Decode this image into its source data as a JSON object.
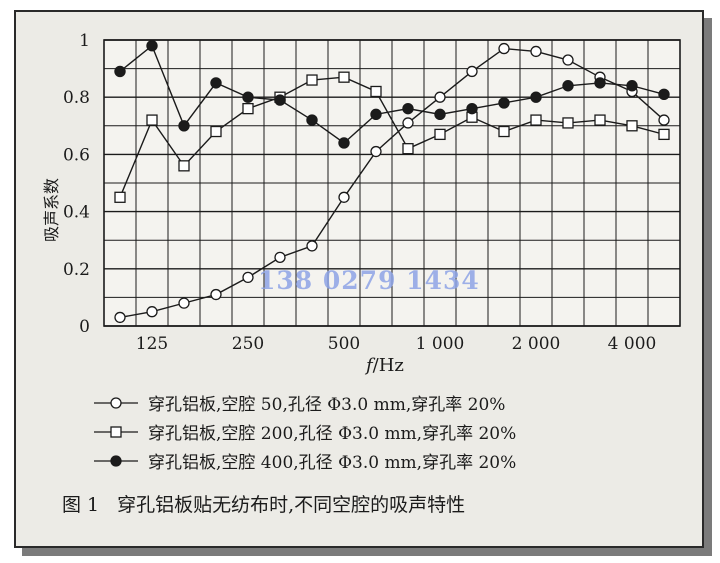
{
  "chart_data": {
    "type": "line",
    "ylabel": "吸声系数",
    "xlabel_italic": "f",
    "xlabel_unit": "/Hz",
    "x_ticks": [
      "125",
      "250",
      "500",
      "1 000",
      "2 000",
      "4 000"
    ],
    "y_ticks": [
      "0",
      "0.2",
      "0.4",
      "0.6",
      "0.8",
      "1"
    ],
    "ylim": [
      0,
      1
    ],
    "x_scale": "log (1/3 octave)",
    "x": [
      100,
      125,
      160,
      200,
      250,
      315,
      400,
      500,
      630,
      800,
      1000,
      1250,
      1600,
      2000,
      2500,
      3150,
      4000,
      5000
    ],
    "grid": true,
    "series": [
      {
        "name": "穿孔铝板，空腔 50，孔径 Φ3.0 mm，穿孔率 20%",
        "marker": "circle-open",
        "values": [
          0.03,
          0.05,
          0.08,
          0.11,
          0.17,
          0.24,
          0.28,
          0.45,
          0.61,
          0.71,
          0.8,
          0.89,
          0.97,
          0.96,
          0.93,
          0.87,
          0.82,
          0.72
        ]
      },
      {
        "name": "穿孔铝板，空腔 200，孔径 Φ3.0 mm，穿孔率 20%",
        "marker": "square-open",
        "values": [
          0.45,
          0.72,
          0.56,
          0.68,
          0.76,
          0.8,
          0.86,
          0.87,
          0.82,
          0.62,
          0.67,
          0.73,
          0.68,
          0.72,
          0.71,
          0.72,
          0.7,
          0.67
        ]
      },
      {
        "name": "穿孔铝板，空腔 400，孔径 Φ3.0 mm，穿孔率 20%",
        "marker": "circle-filled",
        "values": [
          0.89,
          0.98,
          0.7,
          0.85,
          0.8,
          0.79,
          0.72,
          0.64,
          0.74,
          0.76,
          0.74,
          0.76,
          0.78,
          0.8,
          0.84,
          0.85,
          0.84,
          0.81
        ]
      }
    ]
  },
  "legend": [
    "穿孔铝板,空腔 50,孔径 Φ3.0 mm,穿孔率 20%",
    "穿孔铝板,空腔 200,孔径 Φ3.0 mm,穿孔率 20%",
    "穿孔铝板,空腔 400,孔径 Φ3.0 mm,穿孔率 20%"
  ],
  "caption": {
    "number": "图 1",
    "text": "穿孔铝板贴无纺布时,不同空腔的吸声特性"
  },
  "watermark": "138 0279 1434",
  "colors": {
    "ink": "#1b1b1b",
    "background": "#ecebe6",
    "watermark": "#8ea4e6"
  }
}
